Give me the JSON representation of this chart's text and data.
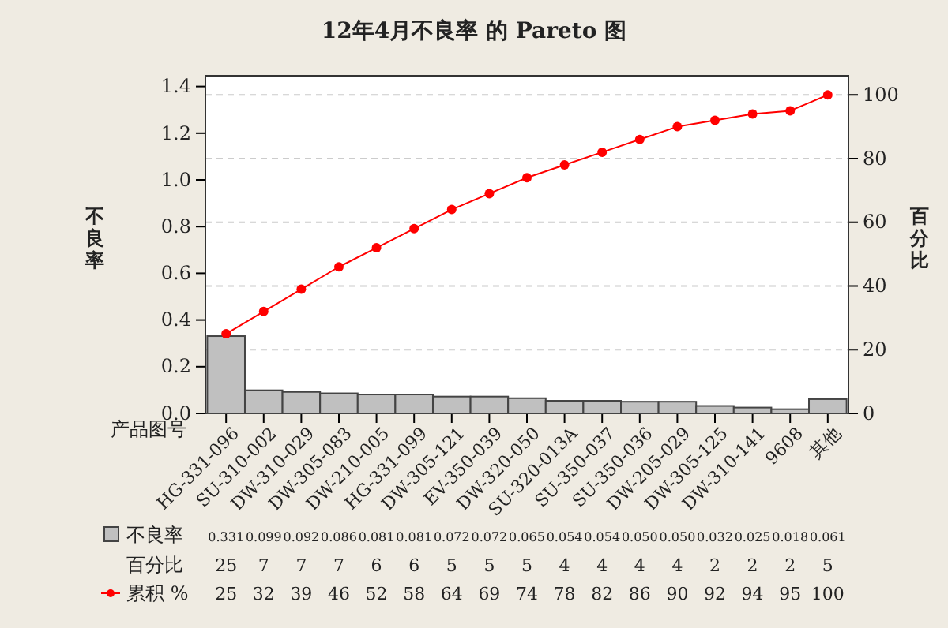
{
  "chart_data": {
    "type": "bar",
    "title": "12年4月不良率 的 Pareto 图",
    "xlabel": "产品图号",
    "ylabel": "不良率",
    "y2label": "百分比",
    "categories": [
      "HG-331-096",
      "SU-310-002",
      "DW-310-029",
      "DW-305-083",
      "DW-210-005",
      "HG-331-099",
      "DW-305-121",
      "EV-350-039",
      "DW-320-050",
      "SU-320-013A",
      "SU-350-037",
      "SU-350-036",
      "DW-205-029",
      "DW-305-125",
      "DW-310-141",
      "9608",
      "其他"
    ],
    "series": [
      {
        "name": "不良率",
        "color": "#c0c0c0",
        "values": [
          0.331,
          0.099,
          0.092,
          0.086,
          0.081,
          0.081,
          0.072,
          0.072,
          0.065,
          0.054,
          0.054,
          0.05,
          0.05,
          0.032,
          0.025,
          0.018,
          0.061
        ],
        "value_labels": [
          "0.331",
          "0.099",
          "0.092",
          "0.086",
          "0.081",
          "0.081",
          "0.072",
          "0.072",
          "0.065",
          "0.054",
          "0.054",
          "0.050",
          "0.050",
          "0.032",
          "0.025",
          "0.018",
          "0.061"
        ]
      },
      {
        "name": "累积 %",
        "type": "line",
        "axis": "y2",
        "color": "#ff0000",
        "marker": "circle",
        "values": [
          25,
          32,
          39,
          46,
          52,
          58,
          64,
          69,
          74,
          78,
          82,
          86,
          90,
          92,
          94,
          95,
          100
        ],
        "value_labels": [
          "25",
          "32",
          "39",
          "46",
          "52",
          "58",
          "64",
          "69",
          "74",
          "78",
          "82",
          "86",
          "90",
          "92",
          "94",
          "95",
          "100"
        ]
      }
    ],
    "annotations": [
      "百分比",
      "25",
      "7",
      "7",
      "7",
      "6",
      "6",
      "5",
      "5",
      "5",
      "4",
      "4",
      "4",
      "4",
      "2",
      "2",
      "2",
      "5"
    ],
    "ylim": [
      0,
      1.446
    ],
    "yticks": [
      {
        "value": 0,
        "label": "0.0"
      },
      {
        "value": 0.2,
        "label": "0.2"
      },
      {
        "value": 0.4,
        "label": "0.4"
      },
      {
        "value": 0.6,
        "label": "0.6"
      },
      {
        "value": 0.8,
        "label": "0.8"
      },
      {
        "value": 1,
        "label": "1.0"
      },
      {
        "value": 1.2,
        "label": "1.2"
      },
      {
        "value": 1.4,
        "label": "1.4"
      }
    ],
    "y2lim": [
      0,
      106
    ],
    "y2ticks": [
      0,
      20,
      40,
      60,
      80,
      100
    ],
    "grid": "y",
    "legend": "bottom left",
    "line_style": "solid"
  }
}
